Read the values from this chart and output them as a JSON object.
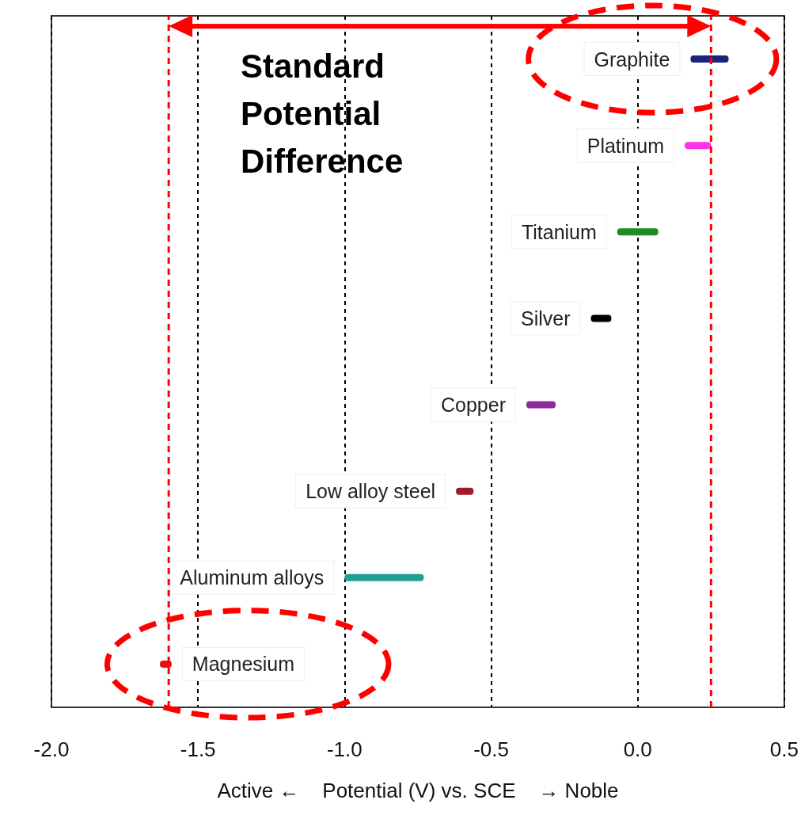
{
  "chart_data": {
    "type": "bar",
    "orientation": "horizontal",
    "xlabel": "Active ←    Potential (V) vs. SCE    → Noble",
    "annotations": [
      "Standard Potential Difference"
    ],
    "categories": [
      "Graphite",
      "Platinum",
      "Titanium",
      "Silver",
      "Copper",
      "Low alloy steel",
      "Aluminum alloys",
      "Magnesium"
    ],
    "base": [
      0.18,
      0.16,
      -0.07,
      -0.16,
      -0.38,
      -0.62,
      -1.0,
      -1.63
    ],
    "values": [
      0.13,
      0.09,
      0.14,
      0.07,
      0.1,
      0.06,
      0.27,
      0.04
    ],
    "colors": [
      "#1a237e",
      "#ff33ee",
      "#1e8c1e",
      "#000000",
      "#8e2a9e",
      "#9b1c2a",
      "#20a090",
      "#e81010"
    ],
    "xlim": [
      -2,
      0.5
    ],
    "xticks": [
      {
        "value": -2,
        "label": "-2.0"
      },
      -1.5,
      {
        "value": -1,
        "label": "-1.0"
      },
      -0.5,
      {
        "value": 0,
        "label": "0.0"
      },
      0.5
    ],
    "grid": "x",
    "tick_labels": "x",
    "ref_lines": [
      {
        "axis": "x",
        "value": -1.6,
        "color": "#ff0000",
        "line_style": "dashed"
      },
      {
        "axis": "x",
        "value": 0.25,
        "color": "#ff0000",
        "line_style": "dashed"
      }
    ]
  }
}
